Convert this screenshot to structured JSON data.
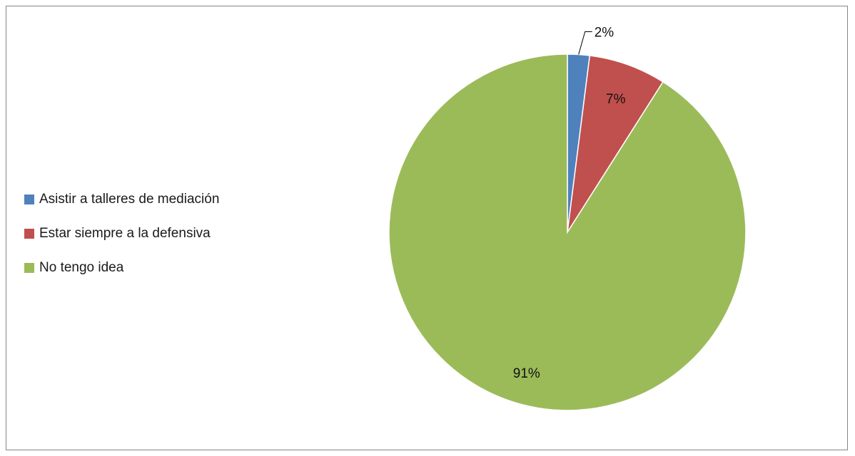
{
  "chart_data": {
    "type": "pie",
    "title": "",
    "categories": [
      "Asistir a talleres de mediación",
      "Estar siempre a la defensiva",
      "No tengo idea"
    ],
    "values": [
      2,
      7,
      91
    ],
    "data_labels": [
      "2%",
      "7%",
      "91%"
    ],
    "colors": [
      "#4f81bd",
      "#c0504d",
      "#9bbb59"
    ],
    "legend_position": "left",
    "start_angle": "12 o'clock, clockwise"
  }
}
